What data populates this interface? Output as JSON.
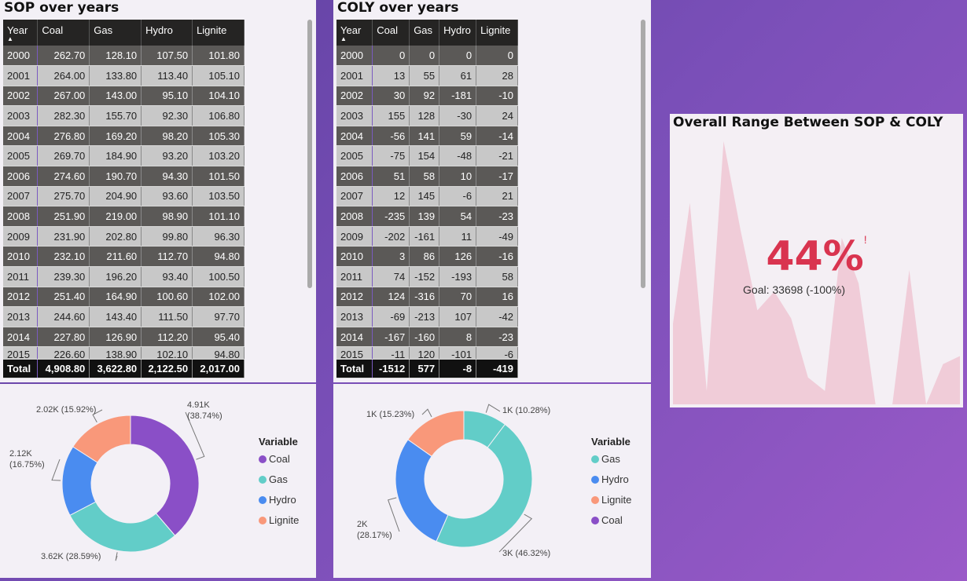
{
  "sop": {
    "title": "SOP over years",
    "headers": [
      "Year",
      "Coal",
      "Gas",
      "Hydro",
      "Lignite"
    ],
    "rows": [
      [
        "2000",
        "262.70",
        "128.10",
        "107.50",
        "101.80"
      ],
      [
        "2001",
        "264.00",
        "133.80",
        "113.40",
        "105.10"
      ],
      [
        "2002",
        "267.00",
        "143.00",
        "95.10",
        "104.10"
      ],
      [
        "2003",
        "282.30",
        "155.70",
        "92.30",
        "106.80"
      ],
      [
        "2004",
        "276.80",
        "169.20",
        "98.20",
        "105.30"
      ],
      [
        "2005",
        "269.70",
        "184.90",
        "93.20",
        "103.20"
      ],
      [
        "2006",
        "274.60",
        "190.70",
        "94.30",
        "101.50"
      ],
      [
        "2007",
        "275.70",
        "204.90",
        "93.60",
        "103.50"
      ],
      [
        "2008",
        "251.90",
        "219.00",
        "98.90",
        "101.10"
      ],
      [
        "2009",
        "231.90",
        "202.80",
        "99.80",
        "96.30"
      ],
      [
        "2010",
        "232.10",
        "211.60",
        "112.70",
        "94.80"
      ],
      [
        "2011",
        "239.30",
        "196.20",
        "93.40",
        "100.50"
      ],
      [
        "2012",
        "251.40",
        "164.90",
        "100.60",
        "102.00"
      ],
      [
        "2013",
        "244.60",
        "143.40",
        "111.50",
        "97.70"
      ],
      [
        "2014",
        "227.80",
        "126.90",
        "112.20",
        "95.40"
      ],
      [
        "2015",
        "226.60",
        "138.90",
        "102.10",
        "94.80"
      ]
    ],
    "total": [
      "Total",
      "4,908.80",
      "3,622.80",
      "2,122.50",
      "2,017.00"
    ]
  },
  "coly": {
    "title": "COLY over years",
    "headers": [
      "Year",
      "Coal",
      "Gas",
      "Hydro",
      "Lignite"
    ],
    "rows": [
      [
        "2000",
        "0",
        "0",
        "0",
        "0"
      ],
      [
        "2001",
        "13",
        "55",
        "61",
        "28"
      ],
      [
        "2002",
        "30",
        "92",
        "-181",
        "-10"
      ],
      [
        "2003",
        "155",
        "128",
        "-30",
        "24"
      ],
      [
        "2004",
        "-56",
        "141",
        "59",
        "-14"
      ],
      [
        "2005",
        "-75",
        "154",
        "-48",
        "-21"
      ],
      [
        "2006",
        "51",
        "58",
        "10",
        "-17"
      ],
      [
        "2007",
        "12",
        "145",
        "-6",
        "21"
      ],
      [
        "2008",
        "-235",
        "139",
        "54",
        "-23"
      ],
      [
        "2009",
        "-202",
        "-161",
        "11",
        "-49"
      ],
      [
        "2010",
        "3",
        "86",
        "126",
        "-16"
      ],
      [
        "2011",
        "74",
        "-152",
        "-193",
        "58"
      ],
      [
        "2012",
        "124",
        "-316",
        "70",
        "16"
      ],
      [
        "2013",
        "-69",
        "-213",
        "107",
        "-42"
      ],
      [
        "2014",
        "-167",
        "-160",
        "8",
        "-23"
      ],
      [
        "2015",
        "-11",
        "120",
        "-101",
        "-6"
      ]
    ],
    "total": [
      "Total",
      "-1512",
      "577",
      "-8",
      "-419"
    ]
  },
  "kpi": {
    "title": "Overall Range Between SOP & COLY",
    "value": "44%",
    "alert": "!",
    "goal": "Goal: 33698 (-100%)"
  },
  "chart_data": [
    {
      "type": "pie",
      "variant": "donut",
      "legend_title": "Variable",
      "legend_position": "right",
      "categories": [
        "Coal",
        "Gas",
        "Hydro",
        "Lignite"
      ],
      "values": [
        4908.8,
        3622.8,
        2122.5,
        2017.0
      ],
      "percentages": [
        38.74,
        28.59,
        16.75,
        15.92
      ],
      "labels": [
        "4.91K\n(38.74%)",
        "3.62K (28.59%)",
        "2.12K\n(16.75%)",
        "2.02K (15.92%)"
      ],
      "colors": [
        "#8a4fc7",
        "#62cdc8",
        "#4a8cf0",
        "#f9987a"
      ]
    },
    {
      "type": "pie",
      "variant": "donut",
      "legend_title": "Variable",
      "legend_position": "right",
      "categories": [
        "Gas",
        "Hydro",
        "Lignite",
        "Coal"
      ],
      "slice_order": [
        "Coal",
        "Gas",
        "Hydro",
        "Lignite"
      ],
      "values": [
        1000,
        3000,
        2000,
        1000
      ],
      "percentages": [
        10.28,
        46.32,
        28.17,
        15.23
      ],
      "labels": [
        "1K (10.28%)",
        "3K (46.32%)",
        "2K\n(28.17%)",
        "1K (15.23%)"
      ],
      "colors": [
        "#62cdc8",
        "#62cdc8",
        "#4a8cf0",
        "#f9987a"
      ],
      "legend_colors": [
        "#62cdc8",
        "#4a8cf0",
        "#f9987a",
        "#8a4fc7"
      ]
    },
    {
      "type": "area",
      "series": [
        {
          "values": [
            0.3,
            0.75,
            0.05,
            0.98,
            0.65,
            0.35,
            0.42,
            0.32,
            0.1,
            0.05,
            0.62,
            0.45,
            0.0,
            0.0,
            0.5,
            0.0,
            0.15,
            0.18
          ]
        }
      ],
      "colors": [
        "#efc6d2"
      ]
    }
  ],
  "colors": {
    "accent": "#d9344f",
    "panel": "#f3f0f6"
  }
}
